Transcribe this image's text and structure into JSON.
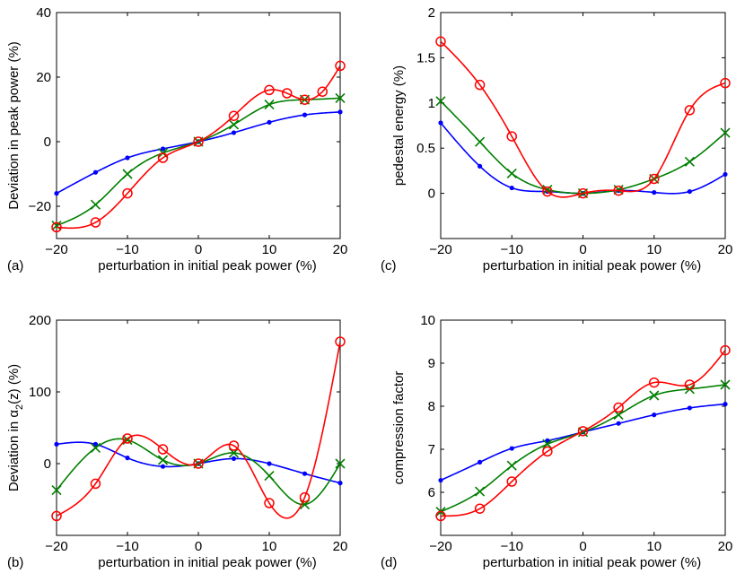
{
  "colors": {
    "blue": "#0000ff",
    "green": "#007f00",
    "red": "#ff0000"
  },
  "chart_data": [
    {
      "type": "line",
      "panel_label": "(a)",
      "xlabel": "perturbation in initial peak power (%)",
      "ylabel": "Deviation in peak power (%)",
      "ylabel_parts": [
        "Deviation in peak power (%)"
      ],
      "xlim": [
        -20,
        20
      ],
      "ylim": [
        -30,
        40
      ],
      "xticks": [
        -20,
        -10,
        0,
        10,
        20
      ],
      "xtick_labels": [
        "−20",
        "−10",
        "0",
        "10",
        "20"
      ],
      "yticks": [
        -20,
        0,
        20,
        40
      ],
      "ytick_labels": [
        "−20",
        "0",
        "20",
        "40"
      ],
      "grid": false,
      "series": [
        {
          "color": "blue",
          "marker": "dot",
          "x": [
            -20,
            -14.5,
            -10,
            -5,
            0,
            5,
            10,
            15,
            20
          ],
          "y": [
            -16,
            -9.5,
            -5,
            -2.2,
            0,
            2.8,
            6,
            8.3,
            9.2
          ]
        },
        {
          "color": "green",
          "marker": "x",
          "x": [
            -20,
            -14.5,
            -10,
            -5,
            0,
            5,
            10,
            15,
            20
          ],
          "y": [
            -26,
            -19.5,
            -10,
            -3.5,
            0,
            5.3,
            11.5,
            13,
            13.5
          ]
        },
        {
          "color": "red",
          "marker": "circle",
          "x": [
            -20,
            -14.5,
            -10,
            -5,
            0,
            5,
            10,
            12.5,
            15,
            17.5,
            20
          ],
          "y": [
            -26.5,
            -25,
            -16,
            -5,
            0,
            8,
            16,
            15,
            13,
            15.5,
            23.5
          ]
        }
      ]
    },
    {
      "type": "line",
      "panel_label": "(c)",
      "xlabel": "perturbation in initial peak power (%)",
      "ylabel": "pedestal energy (%)",
      "ylabel_parts": [
        "pedestal energy (%)"
      ],
      "xlim": [
        -20,
        20
      ],
      "ylim": [
        -0.5,
        2
      ],
      "xticks": [
        -20,
        -10,
        0,
        10,
        20
      ],
      "xtick_labels": [
        "−20",
        "−10",
        "0",
        "10",
        "20"
      ],
      "yticks": [
        0,
        0.5,
        1,
        1.5,
        2
      ],
      "ytick_labels": [
        "0",
        "0.5",
        "1",
        "1.5",
        "2"
      ],
      "grid": false,
      "series": [
        {
          "color": "blue",
          "marker": "dot",
          "x": [
            -20,
            -14.5,
            -10,
            -5,
            0,
            5,
            10,
            15,
            20
          ],
          "y": [
            0.78,
            0.3,
            0.06,
            0.02,
            0,
            0.03,
            0.01,
            0.02,
            0.21
          ]
        },
        {
          "color": "green",
          "marker": "x",
          "x": [
            -20,
            -14.5,
            -10,
            -5,
            0,
            5,
            10,
            15,
            20
          ],
          "y": [
            1.02,
            0.57,
            0.22,
            0.04,
            0,
            0.04,
            0.16,
            0.35,
            0.67
          ]
        },
        {
          "color": "red",
          "marker": "circle",
          "x": [
            -20,
            -14.5,
            -10,
            -5,
            0,
            5,
            10,
            15,
            20
          ],
          "y": [
            1.68,
            1.2,
            0.63,
            0.02,
            0,
            0.03,
            0.16,
            0.92,
            1.22
          ]
        }
      ]
    },
    {
      "type": "line",
      "panel_label": "(b)",
      "xlabel": "perturbation in initial peak power (%)",
      "ylabel": "Deviation in α2(z) (%)",
      "ylabel_parts": [
        "Deviation in ",
        "α",
        "2",
        "(z) (%)"
      ],
      "xlim": [
        -20,
        20
      ],
      "ylim": [
        -100,
        200
      ],
      "xticks": [
        -20,
        -10,
        0,
        10,
        20
      ],
      "xtick_labels": [
        "−20",
        "−10",
        "0",
        "10",
        "20"
      ],
      "yticks": [
        0,
        100,
        200
      ],
      "ytick_labels": [
        "0",
        "100",
        "200"
      ],
      "grid": false,
      "series": [
        {
          "color": "blue",
          "marker": "dot",
          "x": [
            -20,
            -14.5,
            -10,
            -5,
            0,
            5,
            10,
            15,
            20
          ],
          "y": [
            27,
            27,
            8,
            -4,
            0,
            7,
            0,
            -14,
            -27
          ]
        },
        {
          "color": "green",
          "marker": "x",
          "x": [
            -20,
            -14.5,
            -10,
            -5,
            0,
            5,
            10,
            15,
            20
          ],
          "y": [
            -37,
            22,
            33,
            5,
            0,
            15,
            -17,
            -57,
            0
          ]
        },
        {
          "color": "red",
          "marker": "circle",
          "x": [
            -20,
            -14.5,
            -10,
            -5,
            0,
            5,
            10,
            15,
            20
          ],
          "y": [
            -73,
            -28,
            35,
            20,
            0,
            25,
            -55,
            -47,
            170
          ]
        }
      ]
    },
    {
      "type": "line",
      "panel_label": "(d)",
      "xlabel": "perturbation in initial peak power (%)",
      "ylabel": "compression factor",
      "ylabel_parts": [
        "compression factor"
      ],
      "xlim": [
        -20,
        20
      ],
      "ylim": [
        5,
        10
      ],
      "xticks": [
        -20,
        -10,
        0,
        10,
        20
      ],
      "xtick_labels": [
        "−20",
        "−10",
        "0",
        "10",
        "20"
      ],
      "yticks": [
        6,
        7,
        8,
        9,
        10
      ],
      "ytick_labels": [
        "6",
        "7",
        "8",
        "9",
        "10"
      ],
      "grid": false,
      "series": [
        {
          "color": "blue",
          "marker": "dot",
          "x": [
            -20,
            -14.5,
            -10,
            -5,
            0,
            5,
            10,
            15,
            20
          ],
          "y": [
            6.28,
            6.7,
            7.02,
            7.2,
            7.4,
            7.6,
            7.8,
            7.96,
            8.05
          ]
        },
        {
          "color": "green",
          "marker": "x",
          "x": [
            -20,
            -14.5,
            -10,
            -5,
            0,
            5,
            10,
            15,
            20
          ],
          "y": [
            5.55,
            6.02,
            6.62,
            7.12,
            7.4,
            7.8,
            8.25,
            8.4,
            8.5
          ]
        },
        {
          "color": "red",
          "marker": "circle",
          "x": [
            -20,
            -14.5,
            -10,
            -5,
            0,
            5,
            10,
            15,
            20
          ],
          "y": [
            5.45,
            5.62,
            6.25,
            6.95,
            7.42,
            7.97,
            8.55,
            8.5,
            9.3
          ]
        }
      ]
    }
  ]
}
